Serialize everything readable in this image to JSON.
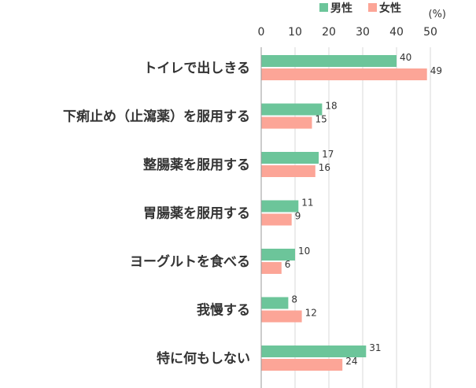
{
  "chart_data": {
    "type": "bar",
    "orientation": "horizontal",
    "unit": "(%)",
    "categories": [
      "トイレで出しきる",
      "下痢止め（止瀉薬）を服用する",
      "整腸薬を服用する",
      "胃腸薬を服用する",
      "ヨーグルトを食べる",
      "我慢する",
      "特に何もしない"
    ],
    "series": [
      {
        "name": "男性",
        "color": "#6cc59a",
        "values": [
          40,
          18,
          17,
          11,
          10,
          8,
          31
        ]
      },
      {
        "name": "女性",
        "color": "#fca597",
        "values": [
          49,
          15,
          16,
          9,
          6,
          12,
          24
        ]
      }
    ],
    "xlim": [
      0,
      50
    ],
    "x_ticks": [
      "0",
      "10",
      "20",
      "30",
      "40",
      "50"
    ],
    "grid": true,
    "legend_position": "top-right"
  }
}
